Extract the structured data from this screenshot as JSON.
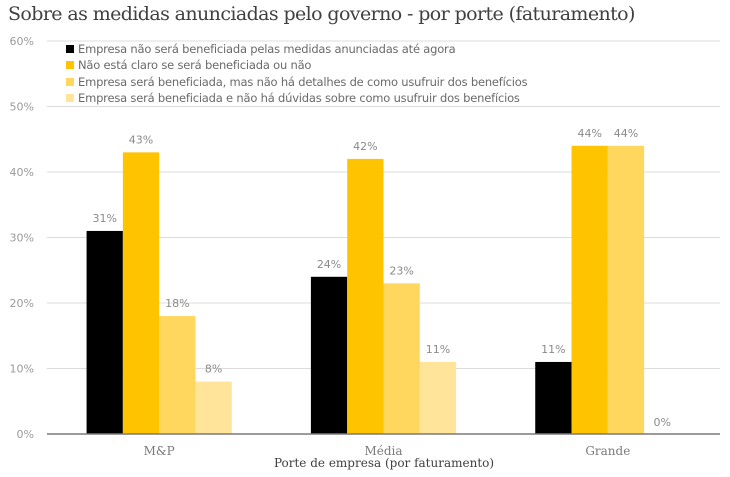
{
  "chart_data": {
    "type": "bar",
    "title": "Sobre as medidas anunciadas pelo governo - por porte (faturamento)",
    "xlabel": "Porte de empresa (por faturamento)",
    "ylabel": "",
    "ylim": [
      0,
      60
    ],
    "yticks": [
      "0%",
      "10%",
      "20%",
      "30%",
      "40%",
      "50%",
      "60%"
    ],
    "ytick_values": [
      0,
      10,
      20,
      30,
      40,
      50,
      60
    ],
    "grid": true,
    "legend_position": "top-left",
    "categories": [
      "M&P",
      "Média",
      "Grande"
    ],
    "series": [
      {
        "name": "Empresa não será beneficiada pelas medidas anunciadas até agora",
        "color": "#000000",
        "values": [
          31,
          24,
          11
        ],
        "labels": [
          "31%",
          "24%",
          "11%"
        ]
      },
      {
        "name": "Não está claro se será beneficiada ou não",
        "color": "#FFC400",
        "values": [
          43,
          42,
          44
        ],
        "labels": [
          "43%",
          "42%",
          "44%"
        ]
      },
      {
        "name": "Empresa será beneficiada, mas não há detalhes de como usufruir dos benefícios",
        "color": "#FFD75F",
        "values": [
          18,
          23,
          44
        ],
        "labels": [
          "18%",
          "23%",
          "44%"
        ]
      },
      {
        "name": "Empresa será beneficiada e não há dúvidas sobre como usufruir dos benefícios",
        "color": "#FFE49A",
        "values": [
          8,
          11,
          0
        ],
        "labels": [
          "8%",
          "11%",
          "0%"
        ]
      }
    ]
  }
}
